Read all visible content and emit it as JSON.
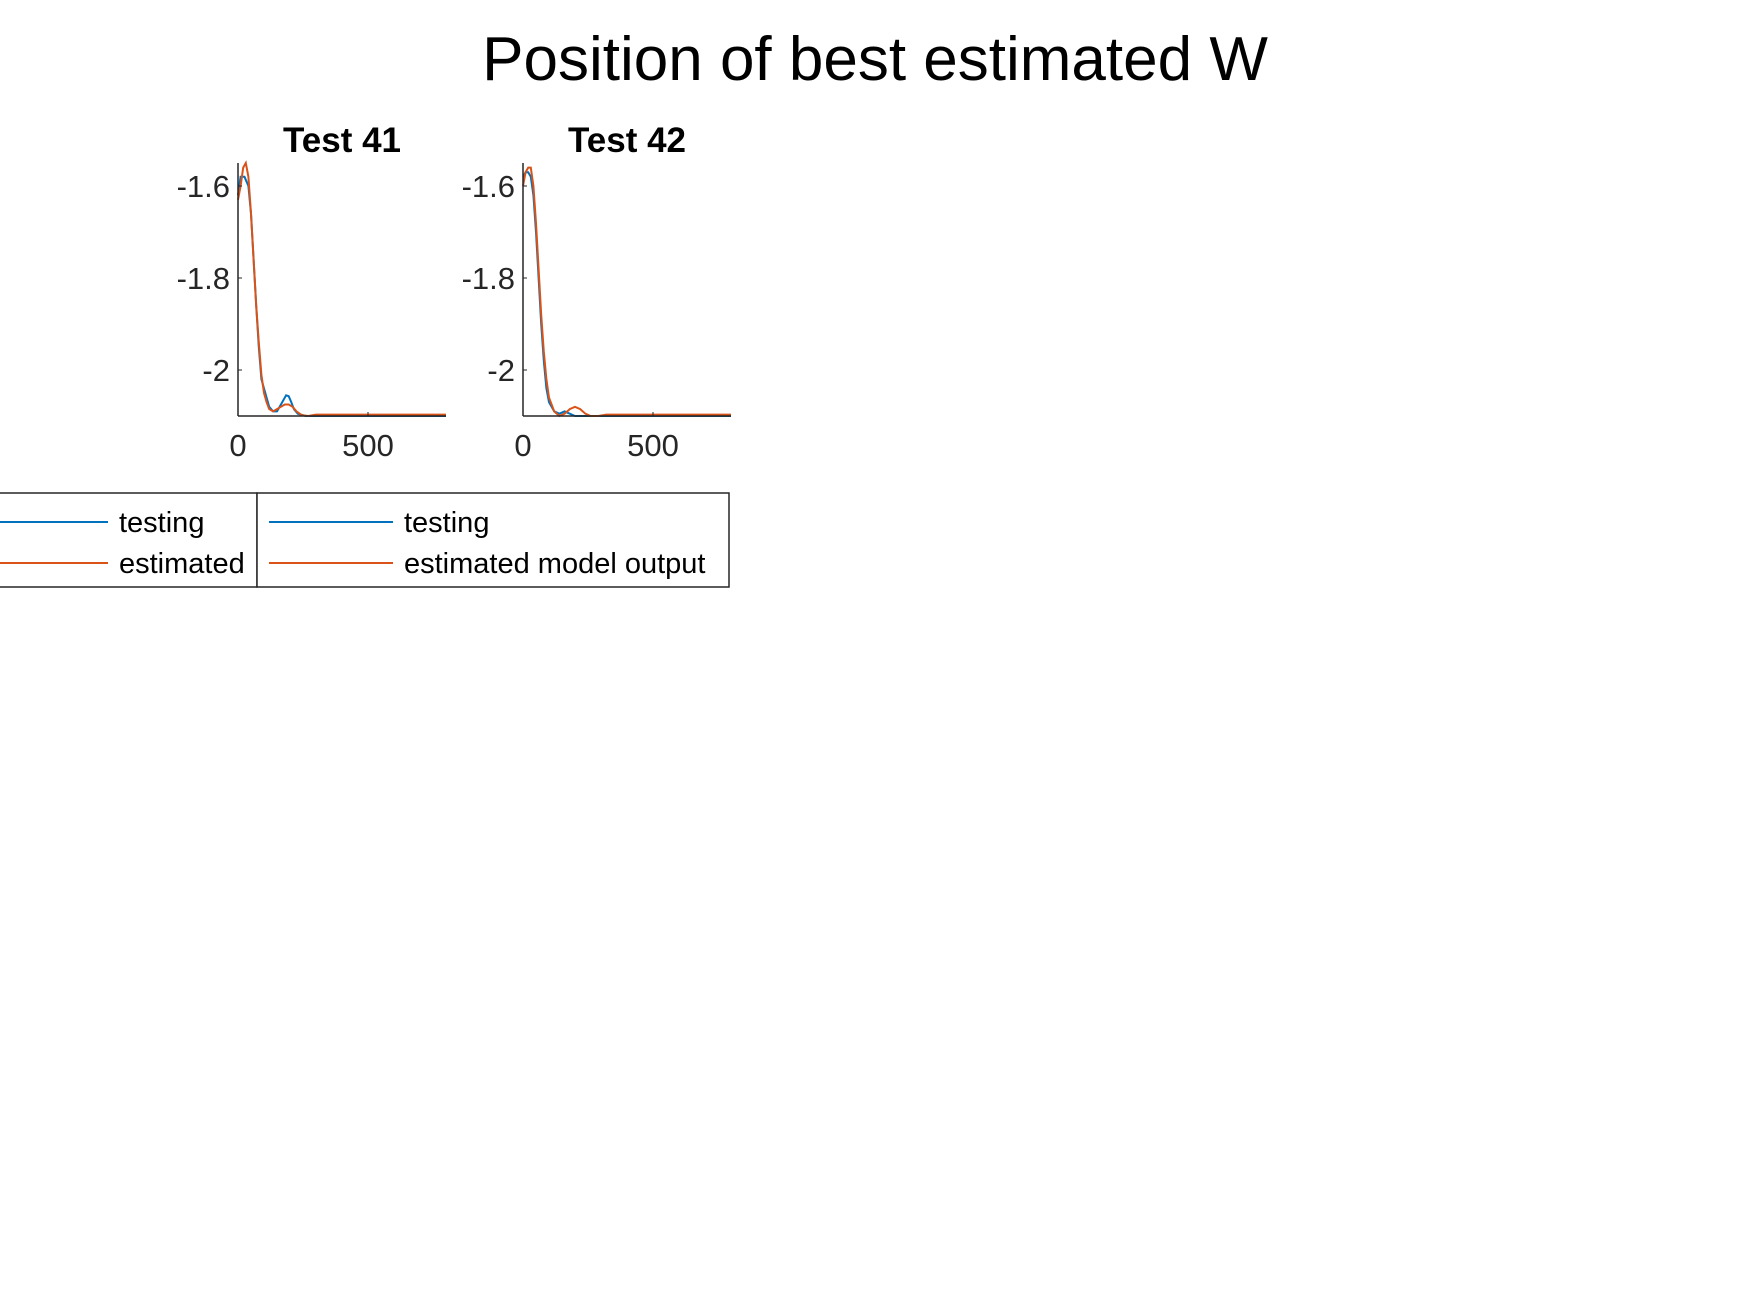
{
  "figure": {
    "title": "Position of best estimated W"
  },
  "colors": {
    "testing": "#0072BD",
    "estimated": "#D95319",
    "axis": "#262626"
  },
  "chart_data": [
    {
      "type": "line",
      "title": "Test 41",
      "xlim": [
        0,
        800
      ],
      "ylim": [
        -2.1,
        -1.55
      ],
      "xticks": [
        0,
        500
      ],
      "xtick_labels": [
        "0",
        "500"
      ],
      "yticks": [
        -1.6,
        -1.8,
        -2
      ],
      "ytick_labels": [
        "-1.6",
        "-1.8",
        "-2"
      ],
      "grid": false,
      "legend": "below",
      "series": [
        {
          "name": "testing",
          "color": "#0072BD",
          "x": [
            0,
            10,
            25,
            40,
            50,
            60,
            70,
            80,
            90,
            100,
            110,
            120,
            135,
            150,
            170,
            185,
            195,
            205,
            215,
            230,
            260,
            300,
            400,
            600,
            800
          ],
          "y": [
            -1.62,
            -1.58,
            -1.58,
            -1.6,
            -1.66,
            -1.76,
            -1.86,
            -1.95,
            -2.02,
            -2.04,
            -2.06,
            -2.08,
            -2.09,
            -2.09,
            -2.07,
            -2.055,
            -2.057,
            -2.07,
            -2.085,
            -2.095,
            -2.1,
            -2.1,
            -2.1,
            -2.1,
            -2.1
          ]
        },
        {
          "name": "estimated",
          "color": "#D95319",
          "x": [
            0,
            10,
            20,
            30,
            40,
            50,
            60,
            70,
            80,
            90,
            100,
            110,
            120,
            135,
            150,
            165,
            180,
            195,
            210,
            225,
            245,
            270,
            300,
            400,
            600,
            800
          ],
          "y": [
            -1.63,
            -1.6,
            -1.56,
            -1.55,
            -1.58,
            -1.66,
            -1.76,
            -1.86,
            -1.94,
            -2.01,
            -2.05,
            -2.07,
            -2.085,
            -2.09,
            -2.085,
            -2.08,
            -2.075,
            -2.075,
            -2.08,
            -2.09,
            -2.098,
            -2.1,
            -2.097,
            -2.097,
            -2.097,
            -2.097
          ]
        }
      ]
    },
    {
      "type": "line",
      "title": "Test 42",
      "xlim": [
        0,
        800
      ],
      "ylim": [
        -2.1,
        -1.55
      ],
      "xticks": [
        0,
        500
      ],
      "xtick_labels": [
        "0",
        "500"
      ],
      "yticks": [
        -1.6,
        -1.8,
        -2
      ],
      "ytick_labels": [
        "-1.6",
        "-1.8",
        "-2"
      ],
      "grid": false,
      "legend": "below",
      "series": [
        {
          "name": "testing",
          "color": "#0072BD",
          "x": [
            0,
            10,
            20,
            30,
            40,
            50,
            60,
            70,
            80,
            90,
            100,
            120,
            140,
            160,
            180,
            200,
            250,
            300,
            400,
            600,
            800
          ],
          "y": [
            -1.58,
            -1.57,
            -1.57,
            -1.58,
            -1.62,
            -1.7,
            -1.8,
            -1.9,
            -1.98,
            -2.04,
            -2.07,
            -2.09,
            -2.095,
            -2.09,
            -2.095,
            -2.1,
            -2.1,
            -2.1,
            -2.1,
            -2.1,
            -2.1
          ]
        },
        {
          "name": "estimated model output",
          "color": "#D95319",
          "x": [
            0,
            10,
            20,
            30,
            40,
            50,
            60,
            70,
            80,
            90,
            100,
            120,
            140,
            160,
            180,
            200,
            220,
            240,
            260,
            290,
            320,
            400,
            600,
            800
          ],
          "y": [
            -1.6,
            -1.57,
            -1.56,
            -1.56,
            -1.6,
            -1.68,
            -1.78,
            -1.88,
            -1.96,
            -2.02,
            -2.06,
            -2.09,
            -2.1,
            -2.095,
            -2.085,
            -2.08,
            -2.085,
            -2.095,
            -2.1,
            -2.1,
            -2.097,
            -2.097,
            -2.097,
            -2.097
          ]
        }
      ]
    }
  ],
  "legends": [
    {
      "entries": [
        {
          "label": "testing"
        },
        {
          "label": "estimated"
        }
      ]
    },
    {
      "entries": [
        {
          "label": "testing"
        },
        {
          "label": "estimated model output"
        }
      ]
    }
  ]
}
